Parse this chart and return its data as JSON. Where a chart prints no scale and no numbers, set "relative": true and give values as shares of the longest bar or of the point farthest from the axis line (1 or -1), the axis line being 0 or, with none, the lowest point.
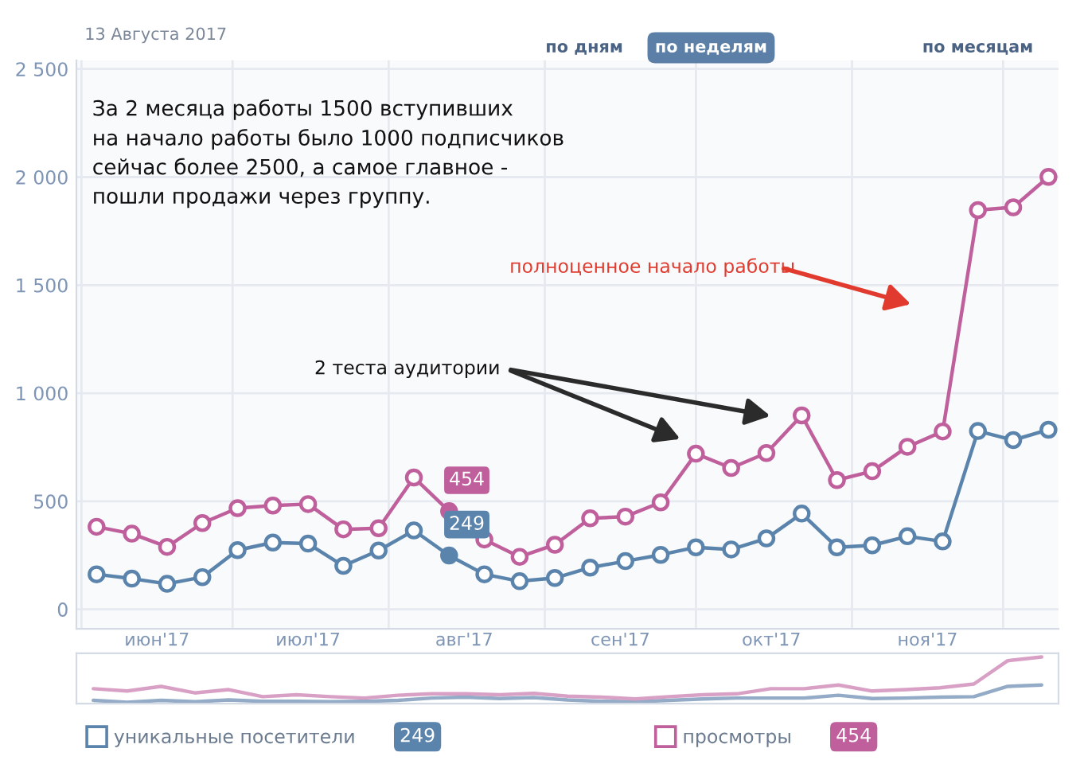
{
  "chart_data": [
    {
      "type": "line",
      "annotations": [
        "13 Августа 2017",
        "по дням",
        "по неделям",
        "по месяцам",
        "За 2 месяца работы 1500 вступивших\nна начало работы было 1000 подписчиков\nсейчас более 2500, а самое главное -\nпошли продажи через группу.",
        "полноценное начало работы",
        "2 теста аудитории"
      ],
      "x": [
        "2017-06-04",
        "2017-06-11",
        "2017-06-18",
        "2017-06-25",
        "2017-07-02",
        "2017-07-09",
        "2017-07-16",
        "2017-07-23",
        "2017-07-30",
        "2017-08-06",
        "2017-08-13",
        "2017-08-20",
        "2017-08-27",
        "2017-09-03",
        "2017-09-10",
        "2017-09-17",
        "2017-09-24",
        "2017-10-01",
        "2017-10-08",
        "2017-10-15",
        "2017-10-22",
        "2017-10-29",
        "2017-11-05",
        "2017-11-12",
        "2017-11-19",
        "2017-11-26",
        "2017-12-03",
        "2017-12-10"
      ],
      "series": [
        {
          "name": "уникальные посетители",
          "color": "#5b84ad",
          "values": [
            162,
            142,
            118,
            149,
            274,
            309,
            304,
            201,
            272,
            365,
            249,
            162,
            130,
            145,
            193,
            223,
            252,
            287,
            277,
            328,
            443,
            287,
            296,
            338,
            314,
            825,
            783,
            831
          ],
          "value_labels": [
            null,
            null,
            null,
            null,
            null,
            null,
            null,
            null,
            null,
            null,
            "249",
            null,
            null,
            null,
            null,
            null,
            null,
            null,
            null,
            null,
            null,
            null,
            null,
            null,
            null,
            null,
            null,
            null
          ]
        },
        {
          "name": "просмотры",
          "color": "#bf5f9c",
          "values": [
            382,
            350,
            289,
            399,
            468,
            480,
            487,
            370,
            375,
            610,
            454,
            323,
            243,
            299,
            421,
            429,
            495,
            720,
            654,
            723,
            897,
            598,
            639,
            752,
            823,
            1847,
            1860,
            2001
          ],
          "value_labels": [
            null,
            null,
            null,
            null,
            null,
            null,
            null,
            null,
            null,
            null,
            "454",
            null,
            null,
            null,
            null,
            null,
            null,
            null,
            null,
            null,
            null,
            null,
            null,
            null,
            null,
            null,
            null,
            null
          ]
        }
      ],
      "xlim": [
        "2017-05-31",
        "2017-12-12"
      ],
      "xticks": [
        {
          "value": "2017-06-01",
          "label": null
        },
        {
          "value": "2017-06-16",
          "label": "июн'17"
        },
        {
          "value": "2017-07-01",
          "label": null
        },
        {
          "value": "2017-07-16",
          "label": "июл'17"
        },
        {
          "value": "2017-08-01",
          "label": null
        },
        {
          "value": "2017-08-16",
          "label": "авг'17"
        },
        {
          "value": "2017-09-01",
          "label": null
        },
        {
          "value": "2017-09-16",
          "label": "сен'17"
        },
        {
          "value": "2017-10-01",
          "label": null
        },
        {
          "value": "2017-10-16",
          "label": "окт'17"
        },
        {
          "value": "2017-11-01",
          "label": null
        },
        {
          "value": "2017-11-16",
          "label": "ноя'17"
        },
        {
          "value": "2017-12-01",
          "label": null
        }
      ],
      "ylim": [
        -90,
        2540
      ],
      "yticks": [
        0,
        500,
        {
          "value": 1000,
          "label": "1 000"
        },
        {
          "value": 1500,
          "label": "1 500"
        },
        {
          "value": 2000,
          "label": "2 000"
        },
        {
          "value": 2500,
          "label": "2 500"
        }
      ],
      "grid": true,
      "marker": "circle",
      "legend": "bottom left"
    },
    {
      "type": "line",
      "relative": true,
      "categories": [
        null,
        null,
        null,
        null,
        null,
        null,
        null,
        null,
        null,
        null,
        null,
        null,
        null,
        null,
        null,
        null,
        null,
        null,
        null,
        null,
        null,
        null,
        null,
        null,
        null,
        null,
        null,
        null,
        null
      ],
      "series": [
        {
          "color": "#93abc6",
          "values": [
            0.07,
            0.03,
            0.07,
            0.04,
            0.08,
            0.05,
            0.05,
            0.04,
            0.05,
            0.07,
            0.12,
            0.14,
            0.11,
            0.13,
            0.08,
            0.05,
            0.04,
            0.07,
            0.1,
            0.12,
            0.12,
            0.12,
            0.18,
            0.11,
            0.12,
            0.14,
            0.15,
            0.37,
            0.4
          ]
        },
        {
          "color": "#d9a0c5",
          "values": [
            0.32,
            0.27,
            0.37,
            0.23,
            0.3,
            0.15,
            0.19,
            0.15,
            0.12,
            0.18,
            0.21,
            0.21,
            0.19,
            0.22,
            0.16,
            0.14,
            0.1,
            0.15,
            0.19,
            0.21,
            0.32,
            0.32,
            0.4,
            0.27,
            0.3,
            0.34,
            0.42,
            0.92,
            1
          ]
        }
      ]
    }
  ]
}
